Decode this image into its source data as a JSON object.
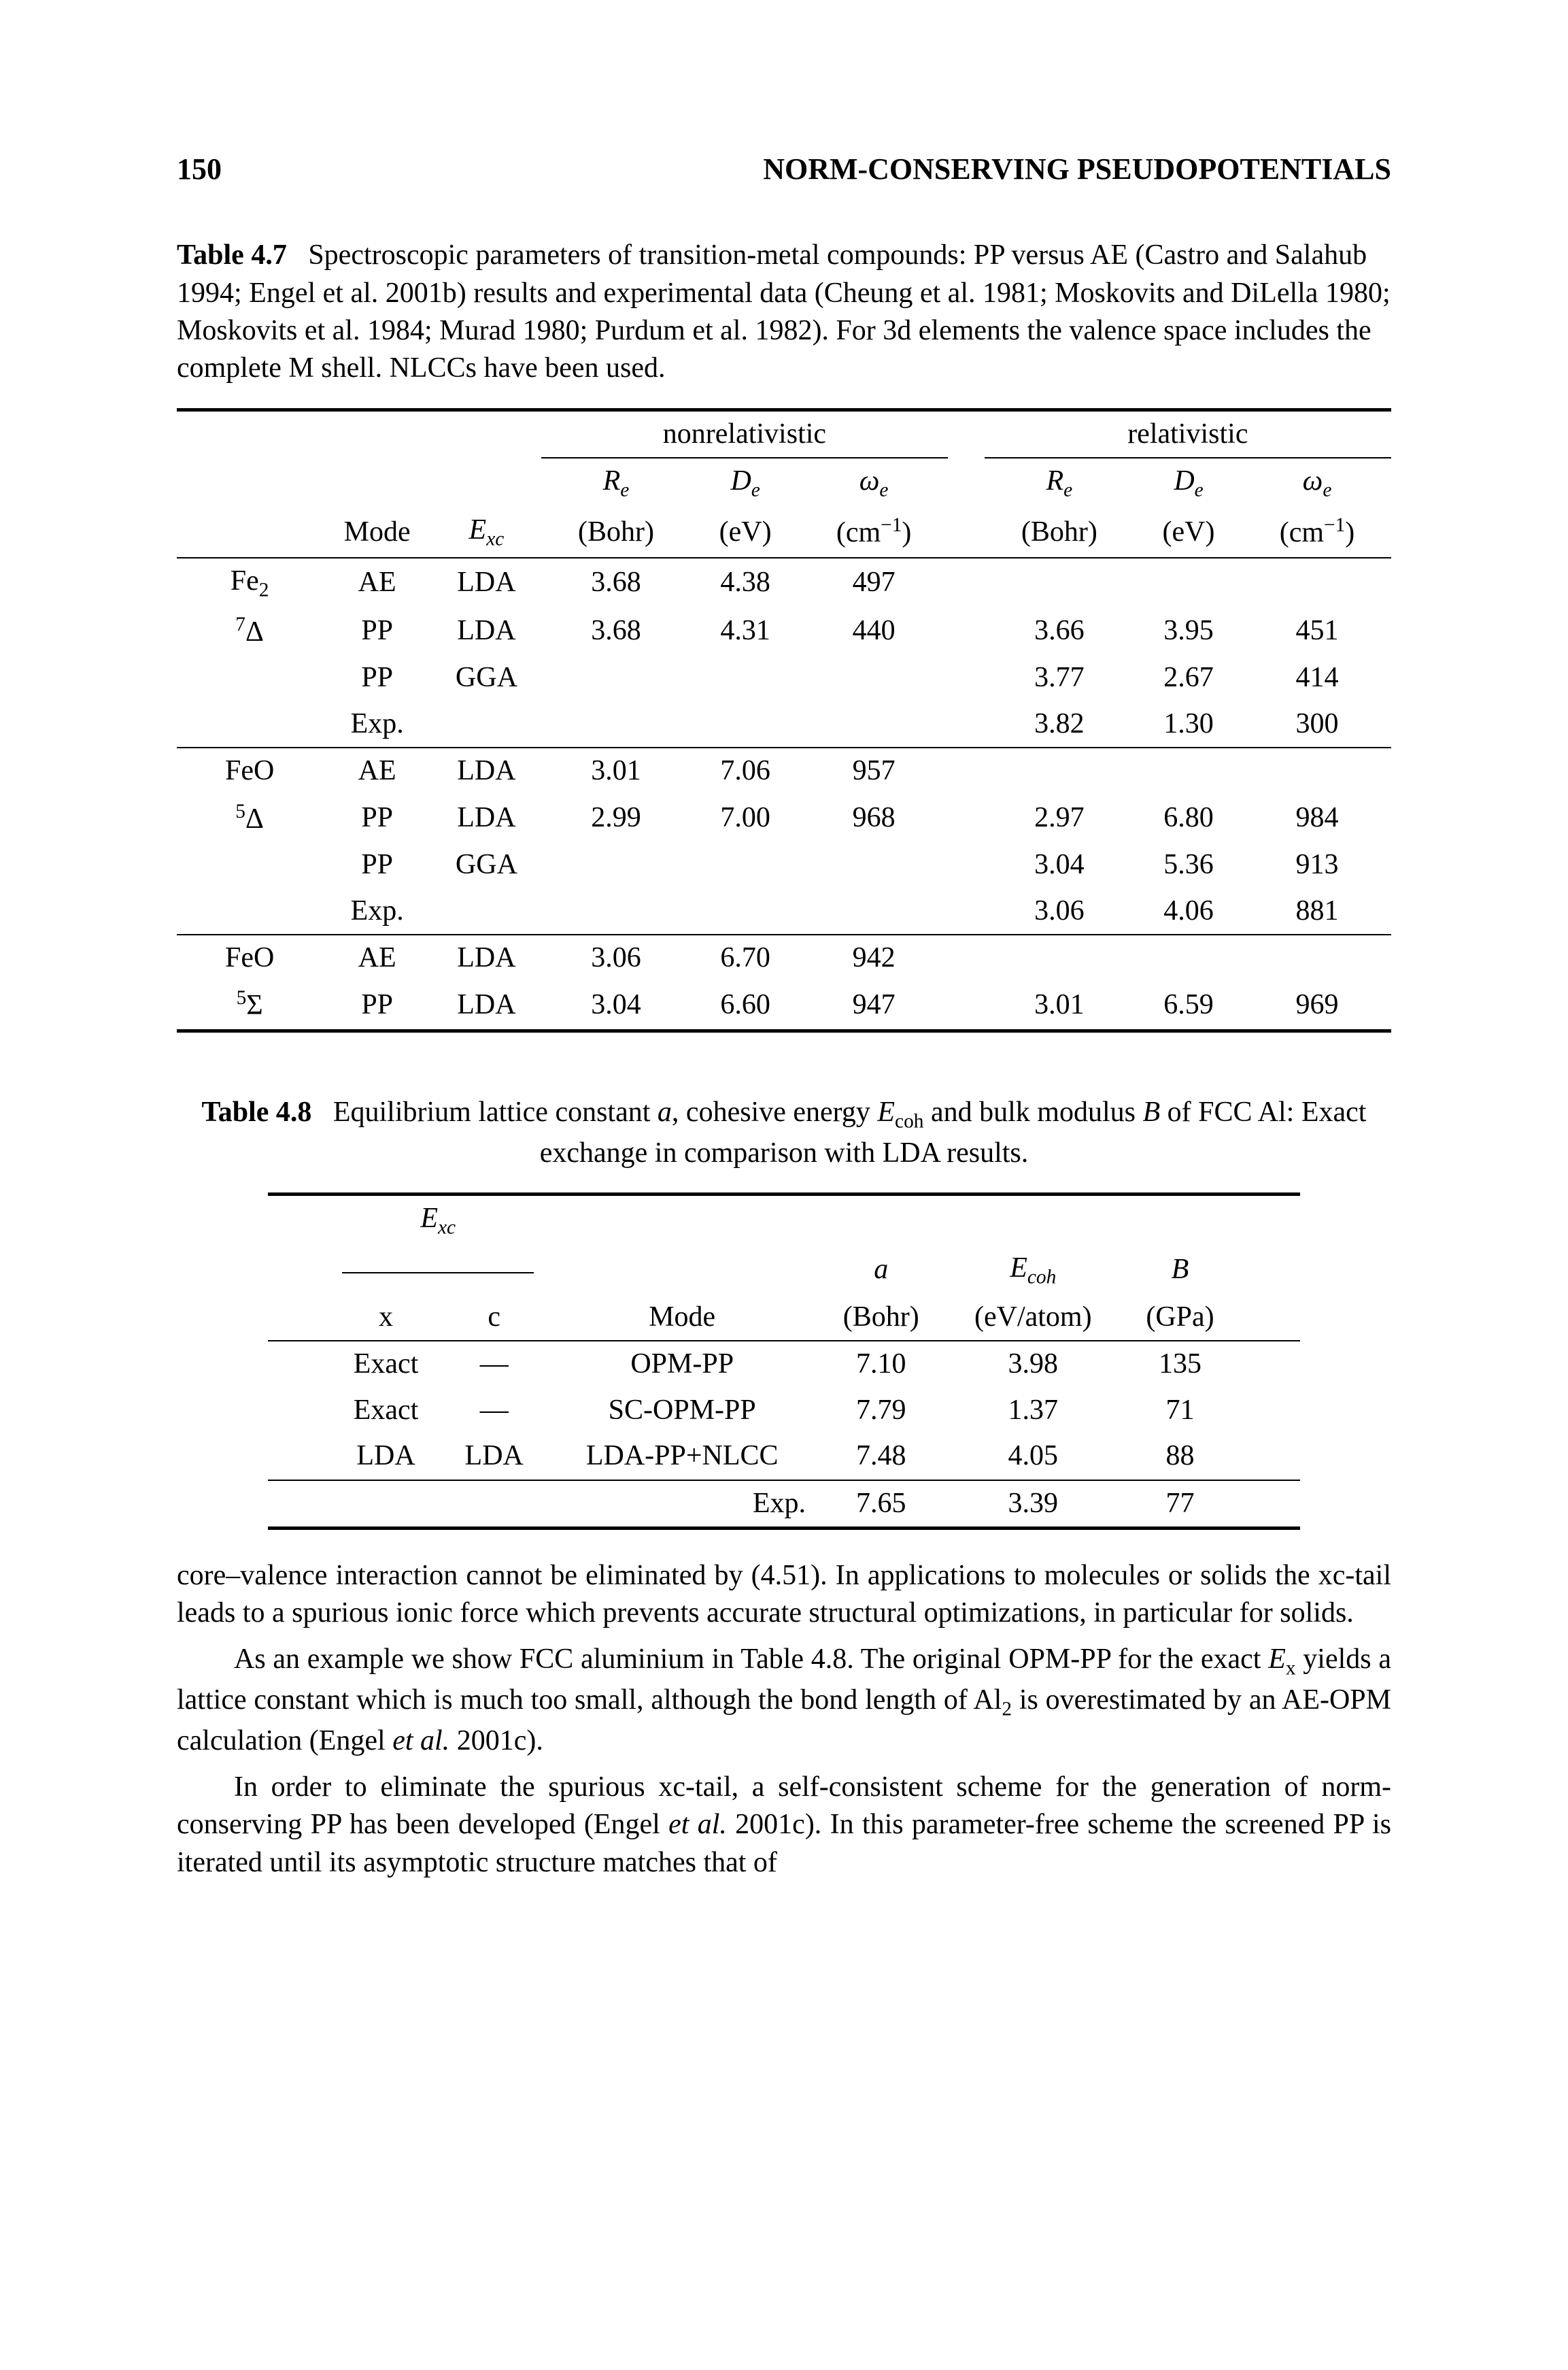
{
  "page_number": "150",
  "running_head": "NORM-CONSERVING PSEUDOPOTENTIALS",
  "table47": {
    "type": "table",
    "caption_lead": "Table 4.7",
    "caption_body": "Spectroscopic parameters of transition-metal compounds: PP versus AE (Castro and Salahub 1994; Engel et al. 2001b) results and experimental data (Cheung et al. 1981; Moskovits and DiLella 1980; Moskovits et al. 1984; Murad 1980; Purdum et al. 1982). For 3d elements the valence space includes the complete M shell. NLCCs have been used.",
    "group_nonrel": "nonrelativistic",
    "group_rel": "relativistic",
    "col_mode": "Mode",
    "col_exc_html": "E<sub>xc</sub>",
    "col_re_html": "R<sub>e</sub>",
    "unit_bohr": "(Bohr)",
    "col_de_html": "D<sub>e</sub>",
    "unit_ev": "(eV)",
    "col_we_html": "ω<sub>e</sub>",
    "unit_cm": "(cm<sup>−1</sup>)",
    "block1": {
      "species_html": "Fe<sub>2</sub>",
      "term_html": "<sup>7</sup>Δ",
      "rows": [
        {
          "mode": "AE",
          "exc": "LDA",
          "nr_re": "3.68",
          "nr_de": "4.38",
          "nr_we": "497",
          "r_re": "",
          "r_de": "",
          "r_we": ""
        },
        {
          "mode": "PP",
          "exc": "LDA",
          "nr_re": "3.68",
          "nr_de": "4.31",
          "nr_we": "440",
          "r_re": "3.66",
          "r_de": "3.95",
          "r_we": "451"
        },
        {
          "mode": "PP",
          "exc": "GGA",
          "nr_re": "",
          "nr_de": "",
          "nr_we": "",
          "r_re": "3.77",
          "r_de": "2.67",
          "r_we": "414"
        },
        {
          "mode": "Exp.",
          "exc": "",
          "nr_re": "",
          "nr_de": "",
          "nr_we": "",
          "r_re": "3.82",
          "r_de": "1.30",
          "r_we": "300"
        }
      ]
    },
    "block2": {
      "species_html": "FeO",
      "term_html": "<sup>5</sup>Δ",
      "rows": [
        {
          "mode": "AE",
          "exc": "LDA",
          "nr_re": "3.01",
          "nr_de": "7.06",
          "nr_we": "957",
          "r_re": "",
          "r_de": "",
          "r_we": ""
        },
        {
          "mode": "PP",
          "exc": "LDA",
          "nr_re": "2.99",
          "nr_de": "7.00",
          "nr_we": "968",
          "r_re": "2.97",
          "r_de": "6.80",
          "r_we": "984"
        },
        {
          "mode": "PP",
          "exc": "GGA",
          "nr_re": "",
          "nr_de": "",
          "nr_we": "",
          "r_re": "3.04",
          "r_de": "5.36",
          "r_we": "913"
        },
        {
          "mode": "Exp.",
          "exc": "",
          "nr_re": "",
          "nr_de": "",
          "nr_we": "",
          "r_re": "3.06",
          "r_de": "4.06",
          "r_we": "881"
        }
      ]
    },
    "block3": {
      "species_html": "FeO",
      "term_html": "<sup>5</sup>Σ",
      "rows": [
        {
          "mode": "AE",
          "exc": "LDA",
          "nr_re": "3.06",
          "nr_de": "6.70",
          "nr_we": "942",
          "r_re": "",
          "r_de": "",
          "r_we": ""
        },
        {
          "mode": "PP",
          "exc": "LDA",
          "nr_re": "3.04",
          "nr_de": "6.60",
          "nr_we": "947",
          "r_re": "3.01",
          "r_de": "6.59",
          "r_we": "969"
        }
      ]
    }
  },
  "table48": {
    "type": "table",
    "caption_lead": "Table 4.8",
    "caption_body_html": "Equilibrium lattice constant <span class=\"ital\">a</span>, cohesive energy <span class=\"ital\">E</span><sub>coh</sub> and bulk modulus <span class=\"ital\">B</span> of FCC Al: Exact exchange in comparison with LDA results.",
    "col_exc_html": "E<sub>xc</sub>",
    "sub_x": "x",
    "sub_c": "c",
    "col_mode": "Mode",
    "col_a_html": "a",
    "unit_bohr": "(Bohr)",
    "col_ecoh_html": "E<sub>coh</sub>",
    "unit_evatom": "(eV/atom)",
    "col_b_html": "B",
    "unit_gpa": "(GPa)",
    "rows": [
      {
        "x": "Exact",
        "c": "—",
        "mode": "OPM-PP",
        "a": "7.10",
        "ecoh": "3.98",
        "b": "135"
      },
      {
        "x": "Exact",
        "c": "—",
        "mode": "SC-OPM-PP",
        "a": "7.79",
        "ecoh": "1.37",
        "b": "71"
      },
      {
        "x": "LDA",
        "c": "LDA",
        "mode": "LDA-PP+NLCC",
        "a": "7.48",
        "ecoh": "4.05",
        "b": "88"
      }
    ],
    "exp_label": "Exp.",
    "exp": {
      "a": "7.65",
      "ecoh": "3.39",
      "b": "77"
    }
  },
  "body": {
    "p1_html": "core–valence interaction cannot be eliminated by (4.51). In applications to molecules or solids the xc-tail leads to a spurious ionic force which prevents accurate structural optimizations, in particular for solids.",
    "p2_html": "As an example we show FCC aluminium in Table 4.8. The original OPM-PP for the exact <span class=\"ital\">E</span><sub>x</sub> yields a lattice constant which is much too small, although the bond length of Al<sub>2</sub> is overestimated by an AE-OPM calculation (Engel <span class=\"ital\">et al.</span> 2001c).",
    "p3_html": "In order to eliminate the spurious xc-tail, a self-consistent scheme for the generation of norm-conserving PP has been developed (Engel <span class=\"ital\">et al.</span> 2001c). In this parameter-free scheme the screened PP is iterated until its asymptotic structure matches that of"
  }
}
